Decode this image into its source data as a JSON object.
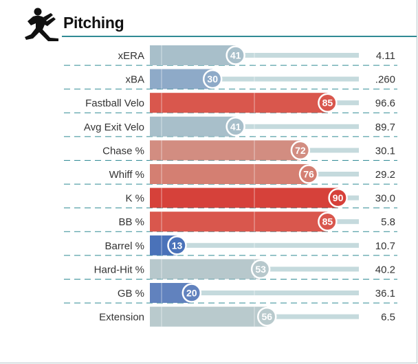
{
  "header": {
    "title": "Pitching",
    "icon": "pitcher-icon"
  },
  "chart_data": {
    "type": "bar",
    "orientation": "horizontal",
    "title": "Pitching",
    "categories": [
      "xERA",
      "xBA",
      "Fastball Velo",
      "Avg Exit Velo",
      "Chase %",
      "Whiff %",
      "K %",
      "BB %",
      "Barrel %",
      "Hard-Hit %",
      "GB %",
      "Extension"
    ],
    "percentiles": [
      41,
      30,
      85,
      41,
      72,
      76,
      90,
      85,
      13,
      53,
      20,
      56
    ],
    "stat_values": [
      "4.11",
      ".260",
      "96.6",
      "89.7",
      "30.1",
      "29.2",
      "30.0",
      "5.8",
      "10.7",
      "40.2",
      "36.1",
      "6.5"
    ],
    "xlim": [
      0,
      100
    ],
    "colors": [
      "#a8bfca",
      "#8eaac8",
      "#d9574d",
      "#a8bfca",
      "#d28d81",
      "#d47f72",
      "#d6413a",
      "#d9574d",
      "#4a72b9",
      "#b7c8cc",
      "#6182be",
      "#b9cacd"
    ],
    "track_color": "#c5dadd",
    "guide_color": "#d3dcde",
    "divider_color": "#2f8a94"
  }
}
